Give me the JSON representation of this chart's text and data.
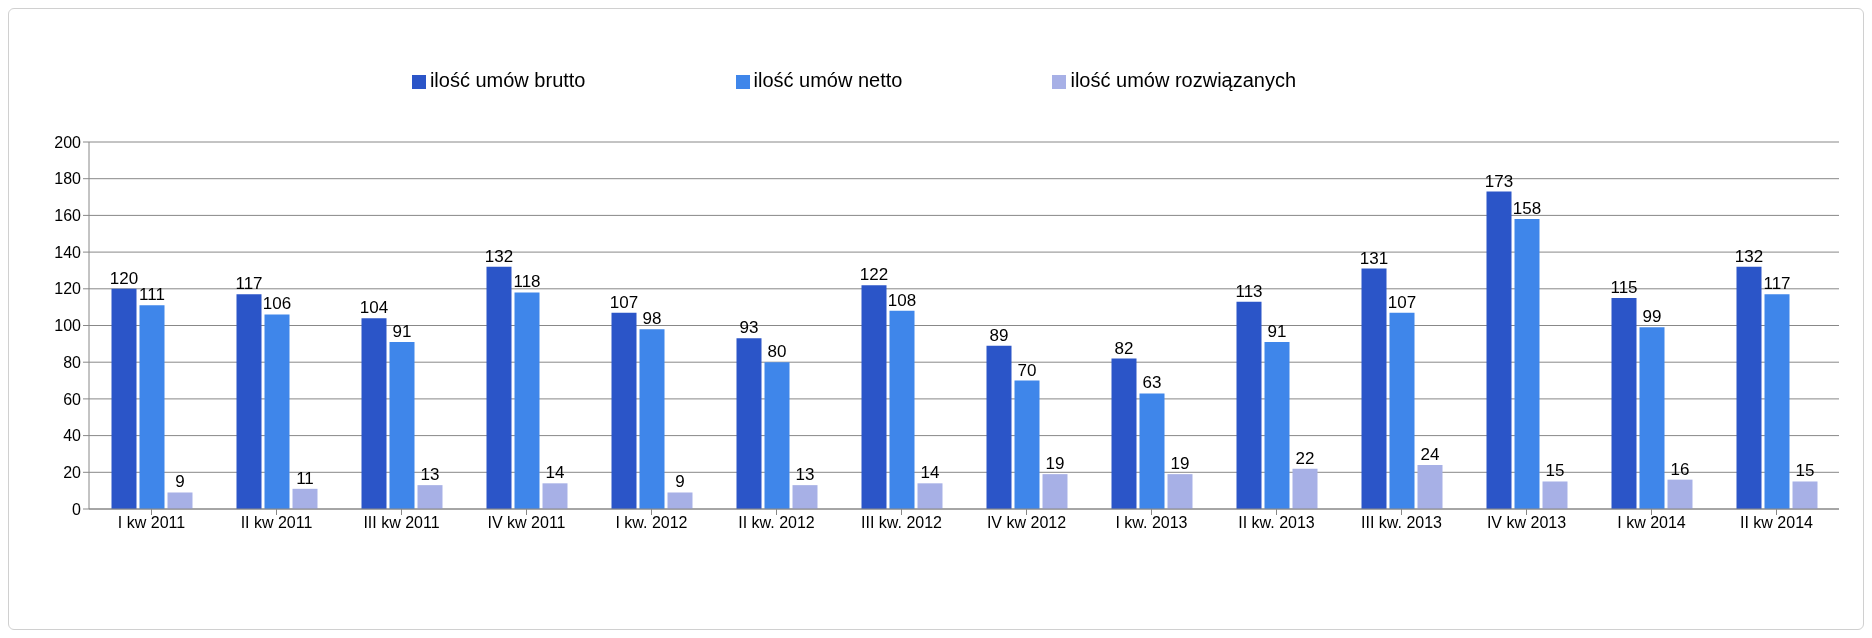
{
  "chart_data": {
    "type": "bar",
    "categories": [
      "I kw 2011",
      "II kw 2011",
      "III kw 2011",
      "IV kw 2011",
      "I kw. 2012",
      "II kw. 2012",
      "III kw. 2012",
      "IV kw 2012",
      "I kw. 2013",
      "II kw. 2013",
      "III kw. 2013",
      "IV kw 2013",
      "I kw 2014",
      "II kw 2014"
    ],
    "series": [
      {
        "name": "ilość umów brutto",
        "color": "#2b55c8",
        "values": [
          120,
          117,
          104,
          132,
          107,
          93,
          122,
          89,
          82,
          113,
          131,
          173,
          115,
          132
        ]
      },
      {
        "name": "ilość umów netto",
        "color": "#3f86ea",
        "values": [
          111,
          106,
          91,
          118,
          98,
          80,
          108,
          70,
          63,
          91,
          107,
          158,
          99,
          117
        ]
      },
      {
        "name": "ilość umów rozwiązanych",
        "color": "#a7b0e6",
        "values": [
          9,
          11,
          13,
          14,
          9,
          13,
          14,
          19,
          19,
          22,
          24,
          15,
          16,
          15
        ]
      }
    ],
    "ylim": [
      0,
      200
    ],
    "yticks": [
      0,
      20,
      40,
      60,
      80,
      100,
      120,
      140,
      160,
      180,
      200
    ],
    "grid": "y",
    "legend": "top",
    "data_labels": true
  }
}
